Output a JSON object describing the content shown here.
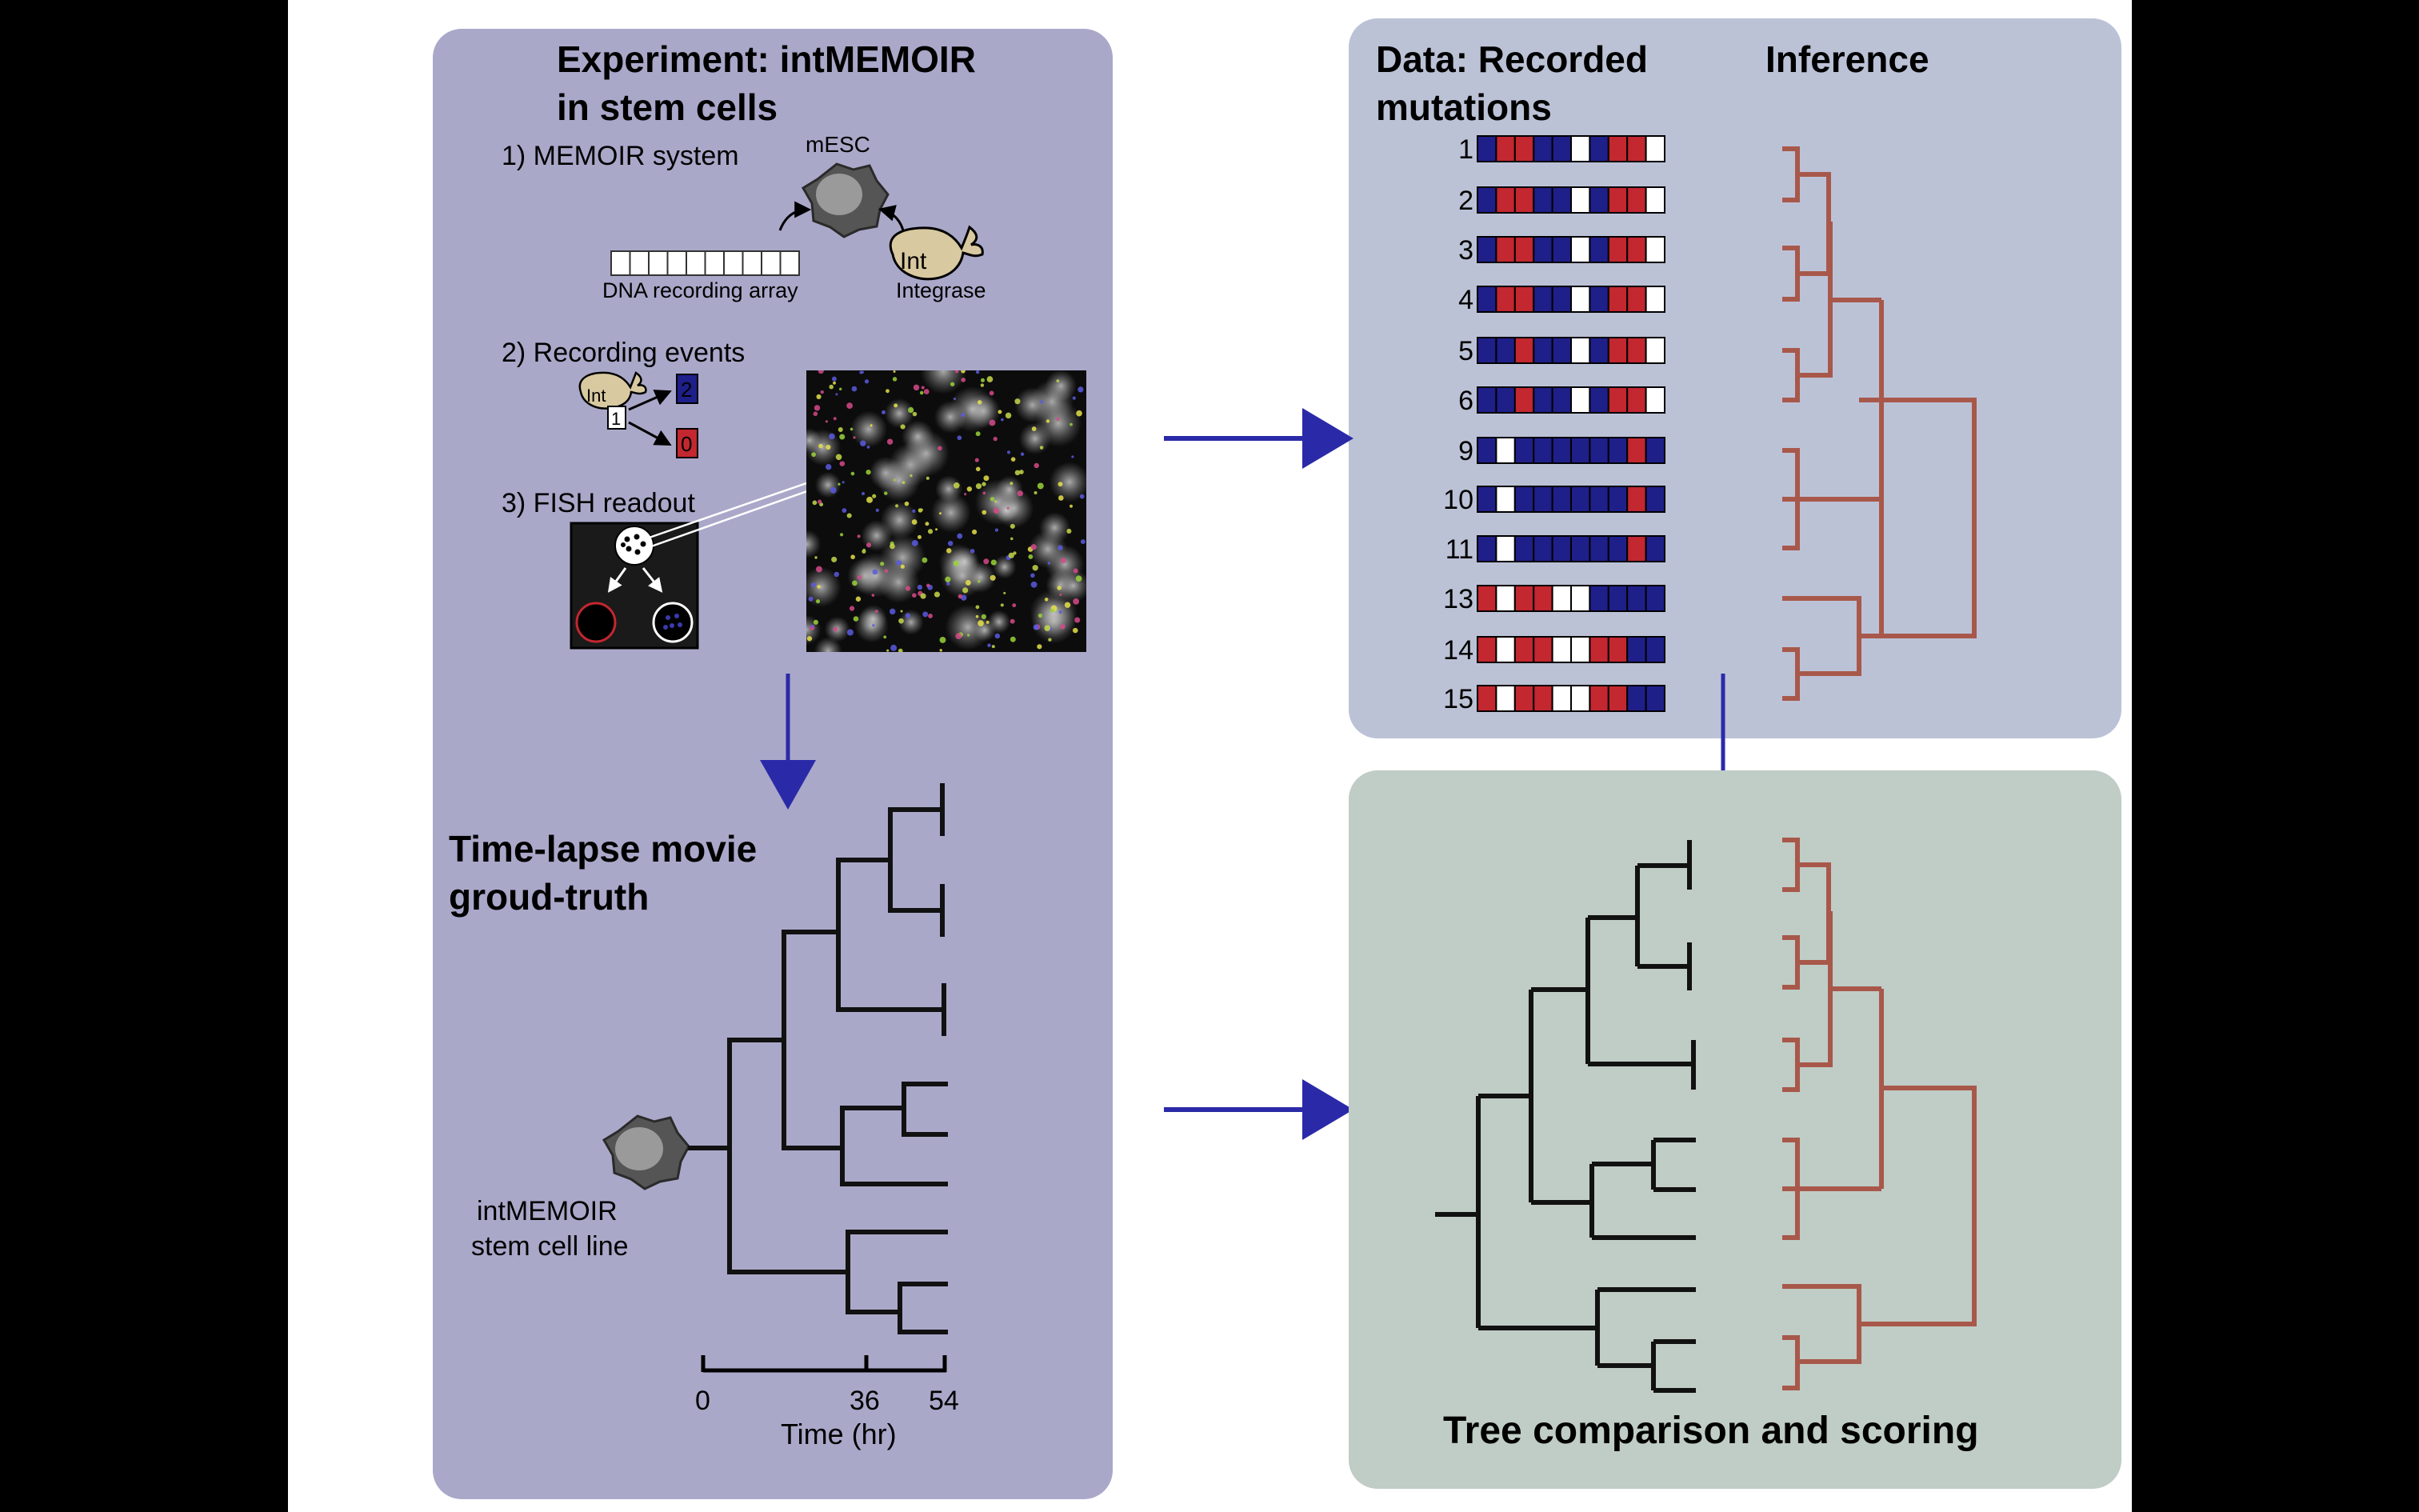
{
  "colors": {
    "background": "#000000",
    "canvas": "#ffffff",
    "experiment_panel": "#aaa8c9",
    "data_panel": "#bcc2d6",
    "comparison_panel": "#c0ccc6",
    "arrow": "#2a2aa8",
    "inferred_tree": "#a8584a",
    "truth_tree": "#111111",
    "state_2": "#1f1f8a",
    "state_0": "#c3272f",
    "state_1": "#ffffff"
  },
  "experiment": {
    "title_line1": "Experiment: intMEMOIR",
    "title_line2": "in stem cells",
    "step1": "1) MEMOIR system",
    "mesc_label": "mESC",
    "int_badge": "Int",
    "dna_label": "DNA recording array",
    "integrase_label": "Integrase",
    "step2": "2) Recording events",
    "state_1": "1",
    "state_2": "2",
    "state_0": "0",
    "step3": "3) FISH readout"
  },
  "timelapse": {
    "title_line1": "Time-lapse movie",
    "title_line2": "groud-truth",
    "cell_line_1": "intMEMOIR",
    "cell_line_2": "stem cell line",
    "axis_ticks": [
      "0",
      "36",
      "54"
    ],
    "axis_label": "Time (hr)"
  },
  "data": {
    "title_line1": "Data: Recorded",
    "title_line2": "mutations",
    "inference_title": "Inference",
    "rows": [
      {
        "id": "1",
        "states": [
          2,
          0,
          0,
          2,
          2,
          1,
          2,
          0,
          0,
          1
        ]
      },
      {
        "id": "2",
        "states": [
          2,
          0,
          0,
          2,
          2,
          1,
          2,
          0,
          0,
          1
        ]
      },
      {
        "id": "3",
        "states": [
          2,
          0,
          0,
          2,
          2,
          1,
          2,
          0,
          0,
          1
        ]
      },
      {
        "id": "4",
        "states": [
          2,
          0,
          0,
          2,
          2,
          1,
          2,
          0,
          0,
          1
        ]
      },
      {
        "id": "5",
        "states": [
          2,
          2,
          0,
          2,
          2,
          1,
          2,
          0,
          0,
          1
        ]
      },
      {
        "id": "6",
        "states": [
          2,
          2,
          0,
          2,
          2,
          1,
          2,
          0,
          0,
          1
        ]
      },
      {
        "id": "9",
        "states": [
          2,
          1,
          2,
          2,
          2,
          2,
          2,
          2,
          0,
          2
        ]
      },
      {
        "id": "10",
        "states": [
          2,
          1,
          2,
          2,
          2,
          2,
          2,
          2,
          0,
          2
        ]
      },
      {
        "id": "11",
        "states": [
          2,
          1,
          2,
          2,
          2,
          2,
          2,
          2,
          0,
          2
        ]
      },
      {
        "id": "13",
        "states": [
          0,
          1,
          0,
          0,
          1,
          1,
          2,
          2,
          2,
          2
        ]
      },
      {
        "id": "14",
        "states": [
          0,
          1,
          0,
          0,
          1,
          1,
          0,
          0,
          2,
          2
        ]
      },
      {
        "id": "15",
        "states": [
          0,
          1,
          0,
          0,
          1,
          1,
          0,
          0,
          2,
          2
        ]
      }
    ]
  },
  "comparison": {
    "title": "Tree comparison and scoring"
  }
}
